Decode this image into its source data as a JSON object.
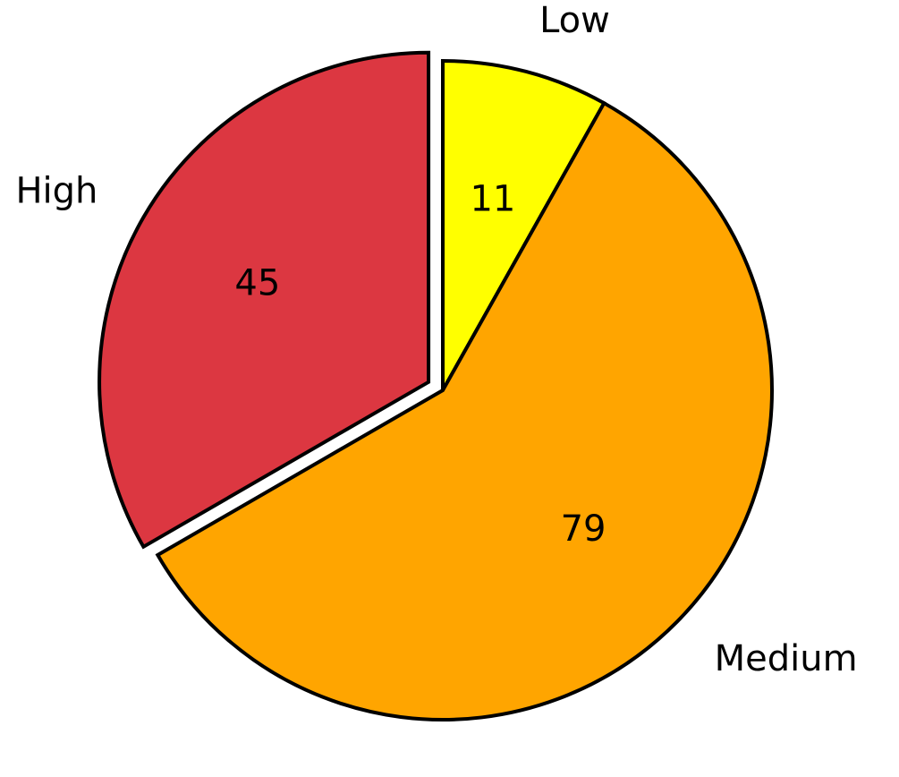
{
  "chart_data": {
    "type": "pie",
    "categories": [
      "Low",
      "Medium",
      "High"
    ],
    "values": [
      11,
      79,
      45
    ],
    "value_labels": [
      "11",
      "79",
      "45"
    ],
    "colors": [
      "#ffff00",
      "#ffa500",
      "#dc3741"
    ],
    "explode": [
      0,
      0,
      0.05
    ],
    "edge_color": "#000000",
    "start": "top",
    "direction": "clockwise",
    "title": "",
    "legend": false
  }
}
